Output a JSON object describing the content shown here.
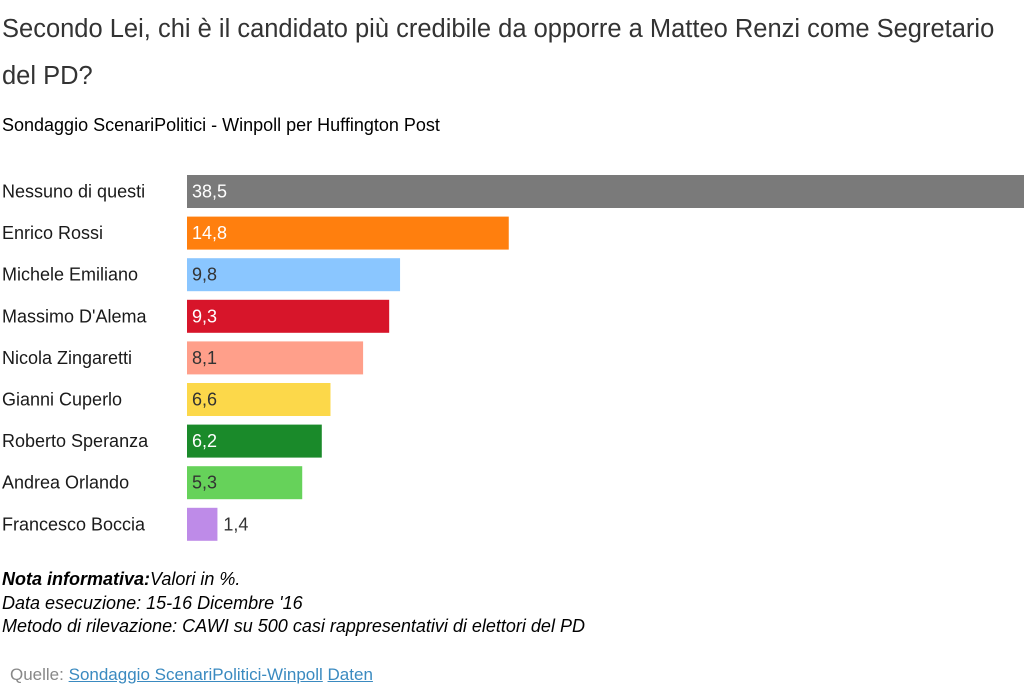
{
  "title": "Secondo Lei, chi è il candidato più credibile da opporre a Matteo Renzi come Segretario del PD?",
  "subtitle": "Sondaggio ScenariPolitici - Winpoll per Huffington Post",
  "chart_data": {
    "type": "bar",
    "orientation": "horizontal",
    "categories": [
      "Nessuno di questi",
      "Enrico Rossi",
      "Michele Emiliano",
      "Massimo D'Alema",
      "Nicola Zingaretti",
      "Gianni Cuperlo",
      "Roberto Speranza",
      "Andrea Orlando",
      "Francesco Boccia"
    ],
    "values": [
      38.5,
      14.8,
      9.8,
      9.3,
      8.1,
      6.6,
      6.2,
      5.3,
      1.4
    ],
    "value_labels": [
      "38,5",
      "14,8",
      "9,8",
      "9,3",
      "8,1",
      "6,6",
      "6,2",
      "5,3",
      "1,4"
    ],
    "colors": [
      "#7a7a7a",
      "#ff7f0e",
      "#8ac6ff",
      "#d7152a",
      "#ff9f8a",
      "#fcd84a",
      "#1a8a2a",
      "#66d25a",
      "#be8be8"
    ],
    "label_colors": [
      "#ffffff",
      "#ffffff",
      "#333333",
      "#ffffff",
      "#333333",
      "#333333",
      "#ffffff",
      "#333333",
      "#333333"
    ],
    "xlim": [
      0,
      38.5
    ],
    "grid": false,
    "legend": "none"
  },
  "notes": {
    "label": "Nota informativa:",
    "text": "Valori in %.",
    "line2": "Data esecuzione: 15-16 Dicembre '16",
    "line3": "Metodo di rilevazione: CAWI su 500 casi rappresentativi di elettori del PD"
  },
  "source": {
    "label": "Quelle:",
    "link1": "Sondaggio ScenariPolitici-Winpoll",
    "link2": "Daten"
  }
}
